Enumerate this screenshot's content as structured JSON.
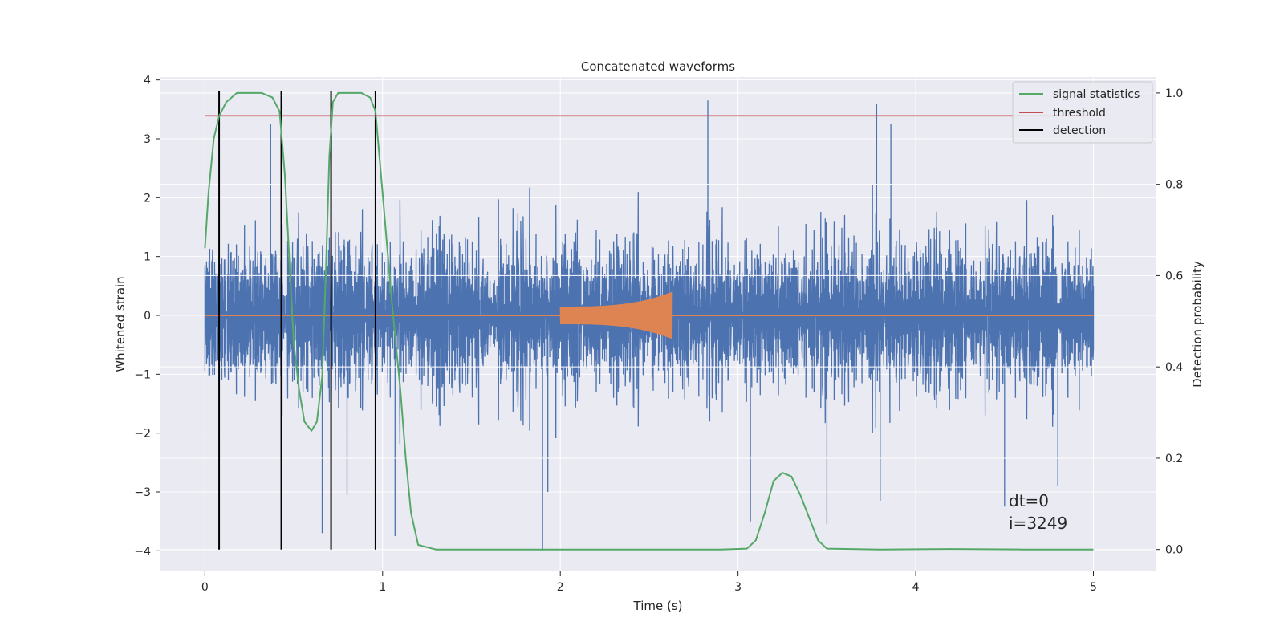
{
  "chart_data": {
    "type": "line",
    "title": "Concatenated waveforms",
    "xlabel": "Time (s)",
    "ylabel": "Whitened strain",
    "y2label": "Detection probability",
    "xlim": [
      -0.25,
      5.35
    ],
    "ylim": [
      -4.35,
      4.05
    ],
    "y2lim": [
      -0.048,
      1.035
    ],
    "xticks": [
      "0",
      "1",
      "2",
      "3",
      "4",
      "5"
    ],
    "yticks": [
      "−4",
      "−3",
      "−2",
      "−1",
      "0",
      "1",
      "2",
      "3",
      "4"
    ],
    "y2ticks": [
      "0.0",
      "0.2",
      "0.4",
      "0.6",
      "0.8",
      "1.0"
    ],
    "grid": true,
    "legend_position": "top-right",
    "legend": [
      "signal statistics",
      "threshold",
      "detection"
    ],
    "annotation": [
      "dt=0",
      "i=3249"
    ],
    "colors": {
      "strain": "#4c72b0",
      "waveform": "#dd8452",
      "signal_statistics": "#55a868",
      "threshold": "#c44e52",
      "detection": "#000000",
      "background": "#eaeaf2",
      "grid": "#ffffff"
    },
    "strain": {
      "x_range": [
        0,
        5
      ],
      "envelope_typical": [
        -1.9,
        2.3
      ],
      "spike_points": [
        {
          "x": 0.37,
          "y": 3.25
        },
        {
          "x": 0.66,
          "y": -3.7
        },
        {
          "x": 0.8,
          "y": -3.05
        },
        {
          "x": 1.07,
          "y": -3.75
        },
        {
          "x": 1.9,
          "y": -4.0
        },
        {
          "x": 1.93,
          "y": -3.0
        },
        {
          "x": 2.83,
          "y": 3.65
        },
        {
          "x": 3.07,
          "y": -3.5
        },
        {
          "x": 3.5,
          "y": -3.55
        },
        {
          "x": 3.78,
          "y": 3.6
        },
        {
          "x": 3.86,
          "y": 3.25
        },
        {
          "x": 3.8,
          "y": -3.15
        },
        {
          "x": 4.5,
          "y": -3.25
        },
        {
          "x": 4.8,
          "y": -2.9
        }
      ]
    },
    "waveform": {
      "x_start": 2.0,
      "x_end": 2.63,
      "amplitude_start": 0.15,
      "amplitude_end": 0.4
    },
    "signal_statistics": {
      "x": [
        0.0,
        0.02,
        0.05,
        0.08,
        0.12,
        0.18,
        0.25,
        0.32,
        0.38,
        0.42,
        0.45,
        0.48,
        0.5,
        0.53,
        0.56,
        0.6,
        0.63,
        0.66,
        0.68,
        0.7,
        0.72,
        0.75,
        0.8,
        0.88,
        0.93,
        0.96,
        1.0,
        1.05,
        1.1,
        1.13,
        1.16,
        1.2,
        1.3,
        1.6,
        2.0,
        2.5,
        2.9,
        3.05,
        3.1,
        3.15,
        3.2,
        3.25,
        3.3,
        3.35,
        3.4,
        3.45,
        3.5,
        3.8,
        4.2,
        4.6,
        5.0
      ],
      "y": [
        0.66,
        0.78,
        0.9,
        0.95,
        0.98,
        1.0,
        1.0,
        1.0,
        0.99,
        0.96,
        0.82,
        0.6,
        0.45,
        0.35,
        0.28,
        0.26,
        0.28,
        0.38,
        0.6,
        0.86,
        0.98,
        1.0,
        1.0,
        1.0,
        0.99,
        0.96,
        0.78,
        0.55,
        0.35,
        0.2,
        0.08,
        0.01,
        0.0,
        0.0,
        0.0,
        0.0,
        0.0,
        0.002,
        0.02,
        0.08,
        0.15,
        0.168,
        0.16,
        0.12,
        0.07,
        0.02,
        0.002,
        0.0,
        0.001,
        0.0,
        0.0
      ]
    },
    "threshold": {
      "x_range": [
        0,
        5
      ],
      "value": 0.95
    },
    "detection_lines": [
      0.08,
      0.43,
      0.71,
      0.96
    ]
  }
}
